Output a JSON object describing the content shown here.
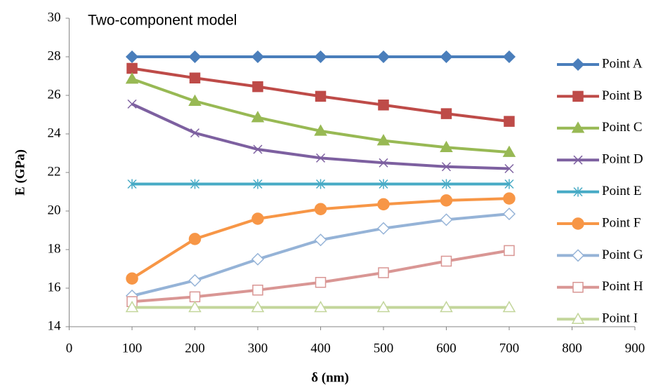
{
  "chart_data": {
    "type": "line",
    "title": "Two-component model",
    "x_label": "δ (nm)",
    "y_label": "E (GPa)",
    "x": [
      100,
      200,
      300,
      400,
      500,
      600,
      700
    ],
    "xlim": [
      0,
      900
    ],
    "xticks": [
      0,
      100,
      200,
      300,
      400,
      500,
      600,
      700,
      800,
      900
    ],
    "ylim": [
      14,
      30
    ],
    "yticks": [
      14,
      16,
      18,
      20,
      22,
      24,
      26,
      28,
      30
    ],
    "grid": false,
    "legend": "right",
    "series": [
      {
        "name": "Point A",
        "color": "#4a7ebb",
        "marker": "diamond",
        "filled": true,
        "values": [
          28,
          28,
          28,
          28,
          28,
          28,
          28
        ]
      },
      {
        "name": "Point B",
        "color": "#be4b48",
        "marker": "square",
        "filled": true,
        "values": [
          27.4,
          26.9,
          26.45,
          25.95,
          25.5,
          25.05,
          24.65
        ]
      },
      {
        "name": "Point C",
        "color": "#98b954",
        "marker": "triangle",
        "filled": true,
        "values": [
          26.85,
          25.7,
          24.85,
          24.15,
          23.65,
          23.3,
          23.05
        ]
      },
      {
        "name": "Point D",
        "color": "#7d60a0",
        "marker": "x",
        "filled": true,
        "values": [
          25.55,
          24.05,
          23.2,
          22.75,
          22.5,
          22.3,
          22.2
        ]
      },
      {
        "name": "Point E",
        "color": "#46aac5",
        "marker": "asterisk",
        "filled": true,
        "values": [
          21.4,
          21.4,
          21.4,
          21.4,
          21.4,
          21.4,
          21.4
        ]
      },
      {
        "name": "Point F",
        "color": "#f79646",
        "marker": "circle",
        "filled": true,
        "values": [
          16.5,
          18.55,
          19.6,
          20.1,
          20.35,
          20.55,
          20.65
        ]
      },
      {
        "name": "Point G",
        "color": "#95b3d7",
        "marker": "diamond",
        "filled": false,
        "values": [
          15.6,
          16.4,
          17.5,
          18.5,
          19.1,
          19.55,
          19.85
        ]
      },
      {
        "name": "Point H",
        "color": "#d99694",
        "marker": "square",
        "filled": false,
        "values": [
          15.3,
          15.55,
          15.9,
          16.3,
          16.8,
          17.4,
          17.95
        ]
      },
      {
        "name": "Point I",
        "color": "#c3d69b",
        "marker": "triangle",
        "filled": false,
        "values": [
          15,
          15,
          15,
          15,
          15,
          15,
          15
        ]
      }
    ]
  }
}
